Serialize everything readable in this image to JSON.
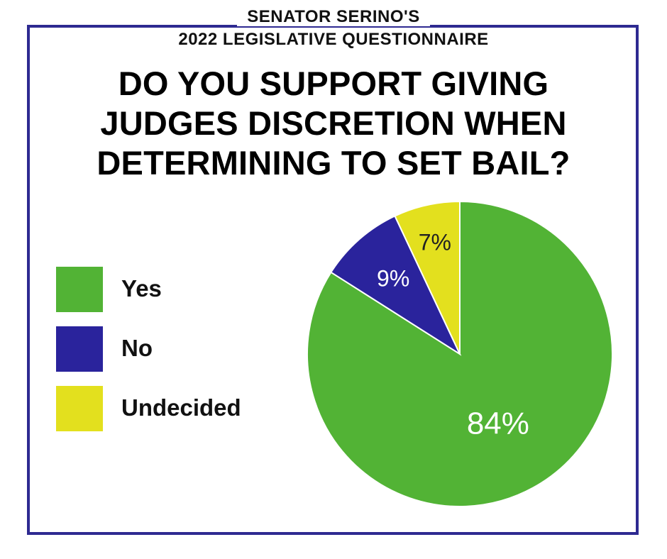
{
  "header": {
    "line1": "SENATOR SERINO'S",
    "line2": "2022 LEGISLATIVE QUESTIONNAIRE"
  },
  "question": {
    "line1": "DO YOU SUPPORT GIVING",
    "line2": "JUDGES DISCRETION WHEN",
    "line3": "DETERMINING TO SET BAIL?"
  },
  "colors": {
    "frame": "#2e2a91",
    "yes": "#52b335",
    "no": "#2a239c",
    "undecided": "#e3e01e"
  },
  "chart_data": {
    "type": "pie",
    "slices": [
      {
        "label": "Yes",
        "value": 84,
        "display": "84%",
        "color": "#52b335"
      },
      {
        "label": "No",
        "value": 9,
        "display": "9%",
        "color": "#2a239c"
      },
      {
        "label": "Undecided",
        "value": 7,
        "display": "7%",
        "color": "#e3e01e"
      }
    ],
    "legend_position": "left"
  }
}
